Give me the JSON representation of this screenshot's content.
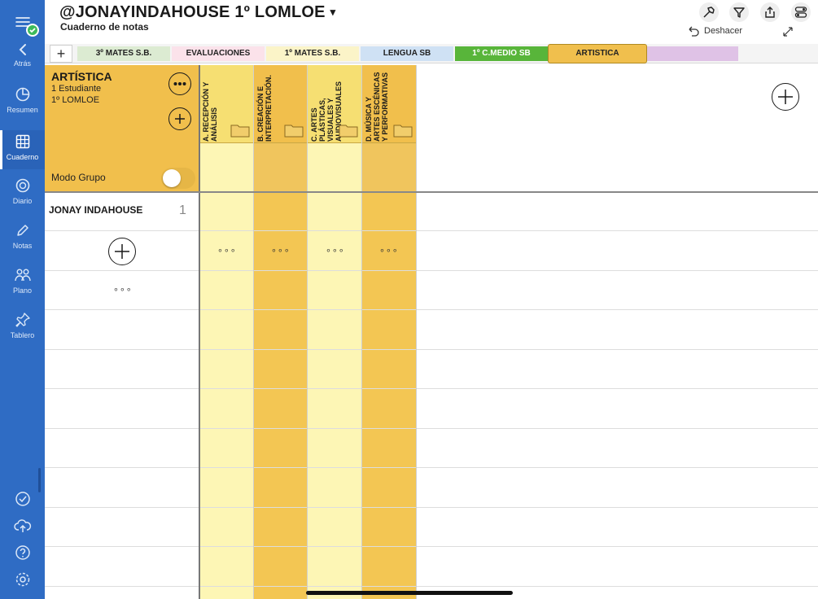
{
  "sidebar": {
    "items": [
      {
        "id": "atras",
        "label": "Atrás",
        "icon": "chevron-left-icon"
      },
      {
        "id": "resumen",
        "label": "Resumen",
        "icon": "pie-chart-icon"
      },
      {
        "id": "cuaderno",
        "label": "Cuaderno",
        "icon": "grid-icon",
        "active": true
      },
      {
        "id": "diario",
        "label": "Diario",
        "icon": "chat-icon"
      },
      {
        "id": "notas",
        "label": "Notas",
        "icon": "pencil-icon"
      },
      {
        "id": "plano",
        "label": "Plano",
        "icon": "people-icon"
      },
      {
        "id": "tablero",
        "label": "Tablero",
        "icon": "pin-icon"
      }
    ]
  },
  "header": {
    "title": "@JONAYINDAHOUSE 1º LOMLOE",
    "title_caret": "▾",
    "subtitle": "Cuaderno de notas",
    "undo_label": "Deshacer",
    "add_tab_label": "+"
  },
  "tabs": [
    {
      "label": "3º MATES S.B.",
      "color": "#dcebd2"
    },
    {
      "label": "EVALUACIONES",
      "color": "#fbe2ea"
    },
    {
      "label": "1º MATES S.B.",
      "color": "#fbf4c8"
    },
    {
      "label": "LENGUA SB",
      "color": "#cfe1f4"
    },
    {
      "label": "1º C.MEDIO SB",
      "color": "#58b53a"
    },
    {
      "label": "ARTISTICA",
      "color": "#f0bf4d",
      "active": true
    },
    {
      "label": "",
      "color": "#dfc2e6"
    }
  ],
  "group": {
    "title": "ARTÍSTICA",
    "students_count": "1 Estudiante",
    "level": "1º LOMLOE",
    "mode_label": "Modo Grupo",
    "mode_on": false
  },
  "columns": [
    {
      "label": "A. RECEPCIÓN Y ANÁLISIS"
    },
    {
      "label": "B. CREACIÓN E INTERPRETACIÓN."
    },
    {
      "label": "C. ARTES PLÁSTICAS, VISUALES Y AUDIOVISUALES"
    },
    {
      "label": "D. MÚSICA Y ARTES ESCÉNICAS Y PERFORMATIVAS"
    }
  ],
  "students": [
    {
      "name": "JONAY INDAHOUSE",
      "number": "1"
    }
  ],
  "dots_label": "∘∘∘",
  "colors": {
    "sidebar": "#2f6cc4",
    "light_yellow": "#fdf6b5",
    "dark_yellow": "#f3c653",
    "artistica": "#f1bf4c"
  }
}
